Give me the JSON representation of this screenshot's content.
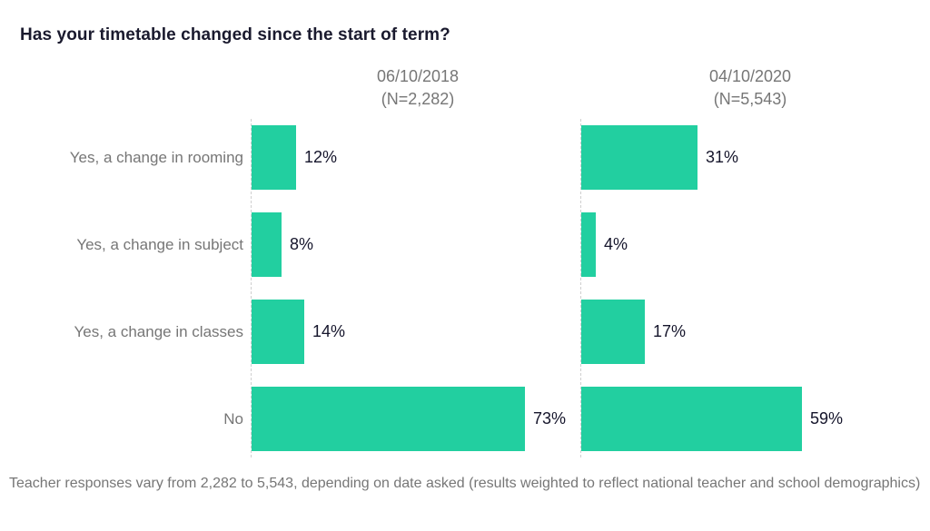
{
  "title": "Has your timetable changed since the start of term?",
  "footer": "Teacher responses vary from 2,282 to 5,543, depending on date asked (results weighted to reflect national teacher and school demographics)",
  "colors": {
    "bar": "#22cfa0",
    "title_text": "#1a1a2e",
    "value_text": "#15152b",
    "muted_text": "#767676",
    "axis_line": "#cfcfcf"
  },
  "chart_data": {
    "type": "bar",
    "orientation": "horizontal",
    "title": "Has your timetable changed since the start of term?",
    "categories": [
      "Yes, a change in rooming",
      "Yes, a change in subject",
      "Yes, a change in classes",
      "No"
    ],
    "series": [
      {
        "name": "06/10/2018",
        "n_label": "(N=2,282)",
        "values": [
          12,
          8,
          14,
          73
        ],
        "value_labels": [
          "12%",
          "8%",
          "14%",
          "73%"
        ]
      },
      {
        "name": "04/10/2020",
        "n_label": "(N=5,543)",
        "values": [
          31,
          4,
          17,
          59
        ],
        "value_labels": [
          "31%",
          "4%",
          "17%",
          "59%"
        ]
      }
    ],
    "unit": "%",
    "xlim": [
      0,
      100
    ],
    "grid": "dashed-baseline-only",
    "value_labels_shown": true,
    "legend_position": "column-headers"
  }
}
